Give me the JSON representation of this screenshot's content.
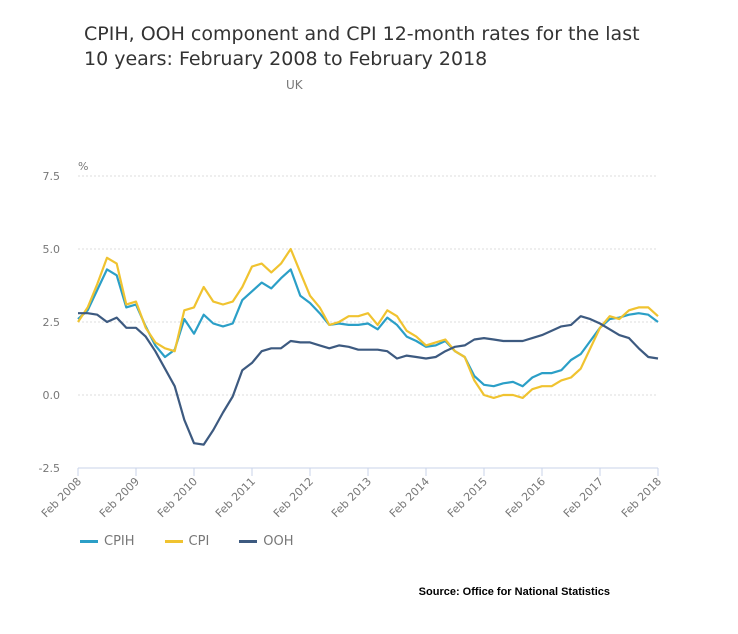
{
  "chart_data": {
    "type": "line",
    "title": "CPIH, OOH component and CPI 12-month rates for the last 10 years: February 2008 to February 2018",
    "subtitle": "UK",
    "ylabel": "%",
    "xlabel": "",
    "ylim": [
      -2.5,
      7.5
    ],
    "yticks": [
      "7.5",
      "5.0",
      "2.5",
      "0.0",
      "-2.5"
    ],
    "ytick_values": [
      7.5,
      5.0,
      2.5,
      0.0,
      -2.5
    ],
    "xticks": [
      "Feb 2008",
      "Feb 2009",
      "Feb 2010",
      "Feb 2011",
      "Feb 2012",
      "Feb 2013",
      "Feb 2014",
      "Feb 2015",
      "Feb 2016",
      "Feb 2017",
      "Feb 2018"
    ],
    "x_start": "2008-02",
    "x_step_months": 2,
    "grid": true,
    "legend_position": "bottom-left",
    "series": [
      {
        "name": "CPIH",
        "color": "#2b9fc7",
        "values": [
          2.6,
          2.9,
          3.6,
          4.3,
          4.1,
          3.0,
          3.1,
          2.35,
          1.7,
          1.3,
          1.55,
          2.6,
          2.1,
          2.75,
          2.45,
          2.35,
          2.45,
          3.25,
          3.55,
          3.85,
          3.65,
          4.0,
          4.3,
          3.4,
          3.15,
          2.8,
          2.4,
          2.45,
          2.4,
          2.4,
          2.45,
          2.25,
          2.65,
          2.4,
          2.0,
          1.85,
          1.65,
          1.7,
          1.85,
          1.5,
          1.3,
          0.65,
          0.35,
          0.3,
          0.4,
          0.45,
          0.3,
          0.6,
          0.75,
          0.75,
          0.85,
          1.2,
          1.4,
          1.85,
          2.3,
          2.6,
          2.65,
          2.75,
          2.8,
          2.75,
          2.5
        ]
      },
      {
        "name": "CPI",
        "color": "#f0c330",
        "values": [
          2.5,
          3.0,
          3.8,
          4.7,
          4.5,
          3.1,
          3.2,
          2.3,
          1.8,
          1.6,
          1.5,
          2.9,
          3.0,
          3.7,
          3.2,
          3.1,
          3.2,
          3.7,
          4.4,
          4.5,
          4.2,
          4.5,
          5.0,
          4.2,
          3.4,
          3.0,
          2.4,
          2.5,
          2.7,
          2.7,
          2.8,
          2.4,
          2.9,
          2.7,
          2.2,
          2.0,
          1.7,
          1.8,
          1.9,
          1.5,
          1.3,
          0.5,
          0.0,
          -0.1,
          0.0,
          0.0,
          -0.1,
          0.2,
          0.3,
          0.3,
          0.5,
          0.6,
          0.9,
          1.6,
          2.3,
          2.7,
          2.6,
          2.9,
          3.0,
          3.0,
          2.7
        ]
      },
      {
        "name": "OOH",
        "color": "#3d5a80",
        "values": [
          2.8,
          2.8,
          2.75,
          2.5,
          2.65,
          2.3,
          2.3,
          2.0,
          1.5,
          0.9,
          0.3,
          -0.85,
          -1.65,
          -1.7,
          -1.2,
          -0.6,
          -0.05,
          0.85,
          1.1,
          1.5,
          1.6,
          1.6,
          1.85,
          1.8,
          1.8,
          1.7,
          1.6,
          1.7,
          1.65,
          1.55,
          1.55,
          1.55,
          1.5,
          1.25,
          1.35,
          1.3,
          1.25,
          1.3,
          1.5,
          1.65,
          1.7,
          1.9,
          1.95,
          1.9,
          1.85,
          1.85,
          1.85,
          1.95,
          2.05,
          2.2,
          2.35,
          2.4,
          2.7,
          2.6,
          2.45,
          2.25,
          2.05,
          1.95,
          1.6,
          1.3,
          1.25
        ]
      }
    ],
    "source": "Source: Office for National Statistics"
  }
}
